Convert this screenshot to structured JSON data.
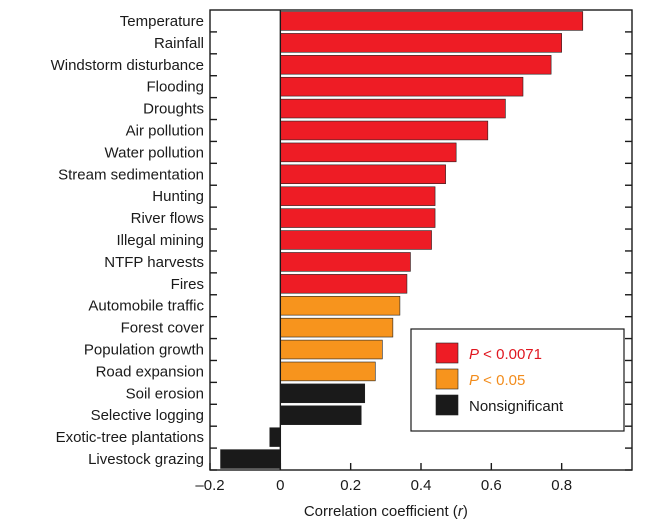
{
  "chart_data": {
    "type": "bar",
    "orientation": "horizontal",
    "categories": [
      "Temperature",
      "Rainfall",
      "Windstorm disturbance",
      "Flooding",
      "Droughts",
      "Air pollution",
      "Water pollution",
      "Stream sedimentation",
      "Hunting",
      "River flows",
      "Illegal mining",
      "NTFP harvests",
      "Fires",
      "Automobile traffic",
      "Forest cover",
      "Population growth",
      "Road expansion",
      "Soil erosion",
      "Selective logging",
      "Exotic-tree plantations",
      "Livestock grazing"
    ],
    "values": [
      0.86,
      0.8,
      0.77,
      0.69,
      0.64,
      0.59,
      0.5,
      0.47,
      0.44,
      0.44,
      0.43,
      0.37,
      0.36,
      0.34,
      0.32,
      0.29,
      0.27,
      0.24,
      0.23,
      -0.03,
      -0.17
    ],
    "groups": [
      "p1",
      "p1",
      "p1",
      "p1",
      "p1",
      "p1",
      "p1",
      "p1",
      "p1",
      "p1",
      "p1",
      "p1",
      "p1",
      "p2",
      "p2",
      "p2",
      "p2",
      "ns",
      "ns",
      "ns",
      "ns"
    ],
    "xlim": [
      -0.2,
      1.0
    ],
    "xticks": [
      -0.2,
      0,
      0.2,
      0.4,
      0.6,
      0.8
    ],
    "xtick_labels": [
      "–0.2",
      "0",
      "0.2",
      "0.4",
      "0.6",
      "0.8"
    ],
    "xlabel_prefix": "Correlation coefficient (",
    "xlabel_var": "r",
    "xlabel_suffix": ")",
    "title": "",
    "grid": false,
    "legend_position": "bottom-right",
    "legend": [
      {
        "key": "p1",
        "symbol": "P",
        "text": " < 0.0071",
        "color": "#ee1c25",
        "text_color": "#e0161f"
      },
      {
        "key": "p2",
        "symbol": "P",
        "text": " < 0.05",
        "color": "#f7941d",
        "text_color": "#f28c1c"
      },
      {
        "key": "ns",
        "symbol": "",
        "text": "Nonsignificant",
        "color": "#1a1a1a",
        "text_color": "#1a1a1a"
      }
    ]
  }
}
